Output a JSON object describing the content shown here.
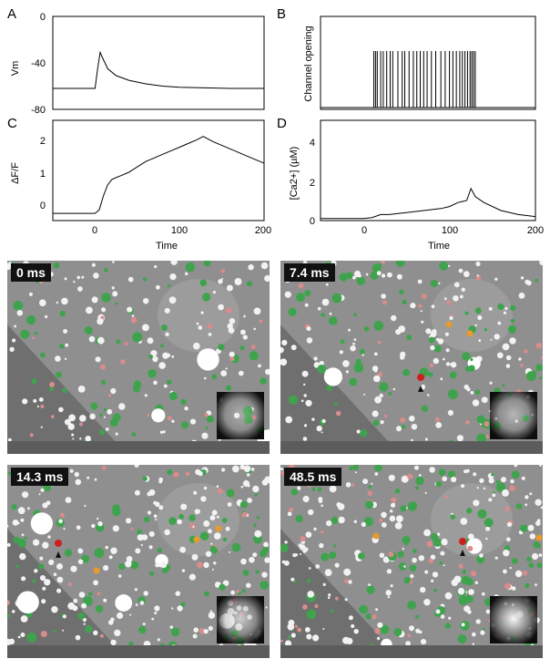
{
  "chart_data": [
    {
      "panel": "A",
      "type": "line",
      "ylabel": "Vm",
      "xlabel": "",
      "xlim": [
        -50,
        200
      ],
      "ylim": [
        -80,
        0
      ],
      "yticks": [
        "0",
        "-40",
        "-80"
      ],
      "series": [
        {
          "x": [
            -50,
            0,
            3,
            6,
            9,
            15,
            25,
            40,
            60,
            80,
            100,
            130,
            160,
            200
          ],
          "values": [
            -62,
            -62,
            -45,
            -31,
            -36,
            -45,
            -51,
            -55,
            -58,
            -60,
            -61,
            -61.5,
            -62,
            -62
          ]
        }
      ]
    },
    {
      "panel": "B",
      "type": "line",
      "ylabel": "Channel opening",
      "xlabel": "",
      "xlim": [
        -50,
        200
      ],
      "open_times": [
        12,
        14,
        16,
        20,
        23,
        27,
        31,
        34,
        40,
        45,
        48,
        53,
        58,
        62,
        66,
        70,
        74,
        79,
        84,
        90,
        95,
        100,
        104,
        108,
        112,
        115,
        118,
        121,
        124,
        126,
        128,
        130
      ]
    },
    {
      "panel": "C",
      "type": "line",
      "ylabel": "ΔF/F",
      "xlabel": "Time",
      "xlim": [
        -50,
        200
      ],
      "ylim": [
        -0.2,
        2.6
      ],
      "xticks": [
        "0",
        "100",
        "200"
      ],
      "yticks": [
        "0",
        "1",
        "2"
      ],
      "series": [
        {
          "x": [
            -50,
            0,
            5,
            10,
            15,
            20,
            30,
            40,
            50,
            60,
            70,
            80,
            90,
            100,
            110,
            120,
            128,
            140,
            160,
            180,
            200
          ],
          "values": [
            0,
            0,
            0.1,
            0.5,
            0.8,
            0.95,
            1.05,
            1.15,
            1.3,
            1.45,
            1.55,
            1.65,
            1.75,
            1.85,
            1.95,
            2.05,
            2.15,
            2.0,
            1.8,
            1.6,
            1.4
          ]
        }
      ]
    },
    {
      "panel": "D",
      "type": "line",
      "ylabel": "[Ca2+] (µM)",
      "xlabel": "Time",
      "xlim": [
        -50,
        200
      ],
      "ylim": [
        0,
        5
      ],
      "xticks": [
        "0",
        "100",
        "200"
      ],
      "yticks": [
        "0",
        "2",
        "4"
      ],
      "series": [
        {
          "x": [
            -50,
            0,
            10,
            20,
            30,
            40,
            50,
            60,
            70,
            80,
            90,
            100,
            110,
            120,
            125,
            130,
            140,
            160,
            180,
            200
          ],
          "values": [
            0.1,
            0.1,
            0.15,
            0.3,
            0.3,
            0.35,
            0.4,
            0.45,
            0.5,
            0.55,
            0.6,
            0.7,
            0.9,
            1.0,
            1.6,
            1.2,
            0.9,
            0.5,
            0.3,
            0.2
          ]
        }
      ]
    }
  ],
  "labels": {
    "A": "A",
    "B": "B",
    "C": "C",
    "D": "D",
    "A_tick_0": "0",
    "A_tick_m40": "-40",
    "A_tick_m80": "-80",
    "A_ylabel": "Vm",
    "B_ylabel": "Channel opening",
    "C_tick_0": "0",
    "C_tick_1": "1",
    "C_tick_2": "2",
    "C_ylabel": "ΔF/F",
    "C_x0": "0",
    "C_x100": "100",
    "C_x200": "200",
    "C_xlabel": "Time",
    "D_tick_0": "0",
    "D_tick_2": "2",
    "D_tick_4": "4",
    "D_ylabel": "[Ca2+] (µM)",
    "D_x0": "0",
    "D_x100": "100",
    "D_x200": "200",
    "D_xlabel": "Time"
  },
  "frames": [
    {
      "label": "0 ms"
    },
    {
      "label": "7.4 ms"
    },
    {
      "label": "14.3 ms"
    },
    {
      "label": "48.5 ms"
    }
  ]
}
